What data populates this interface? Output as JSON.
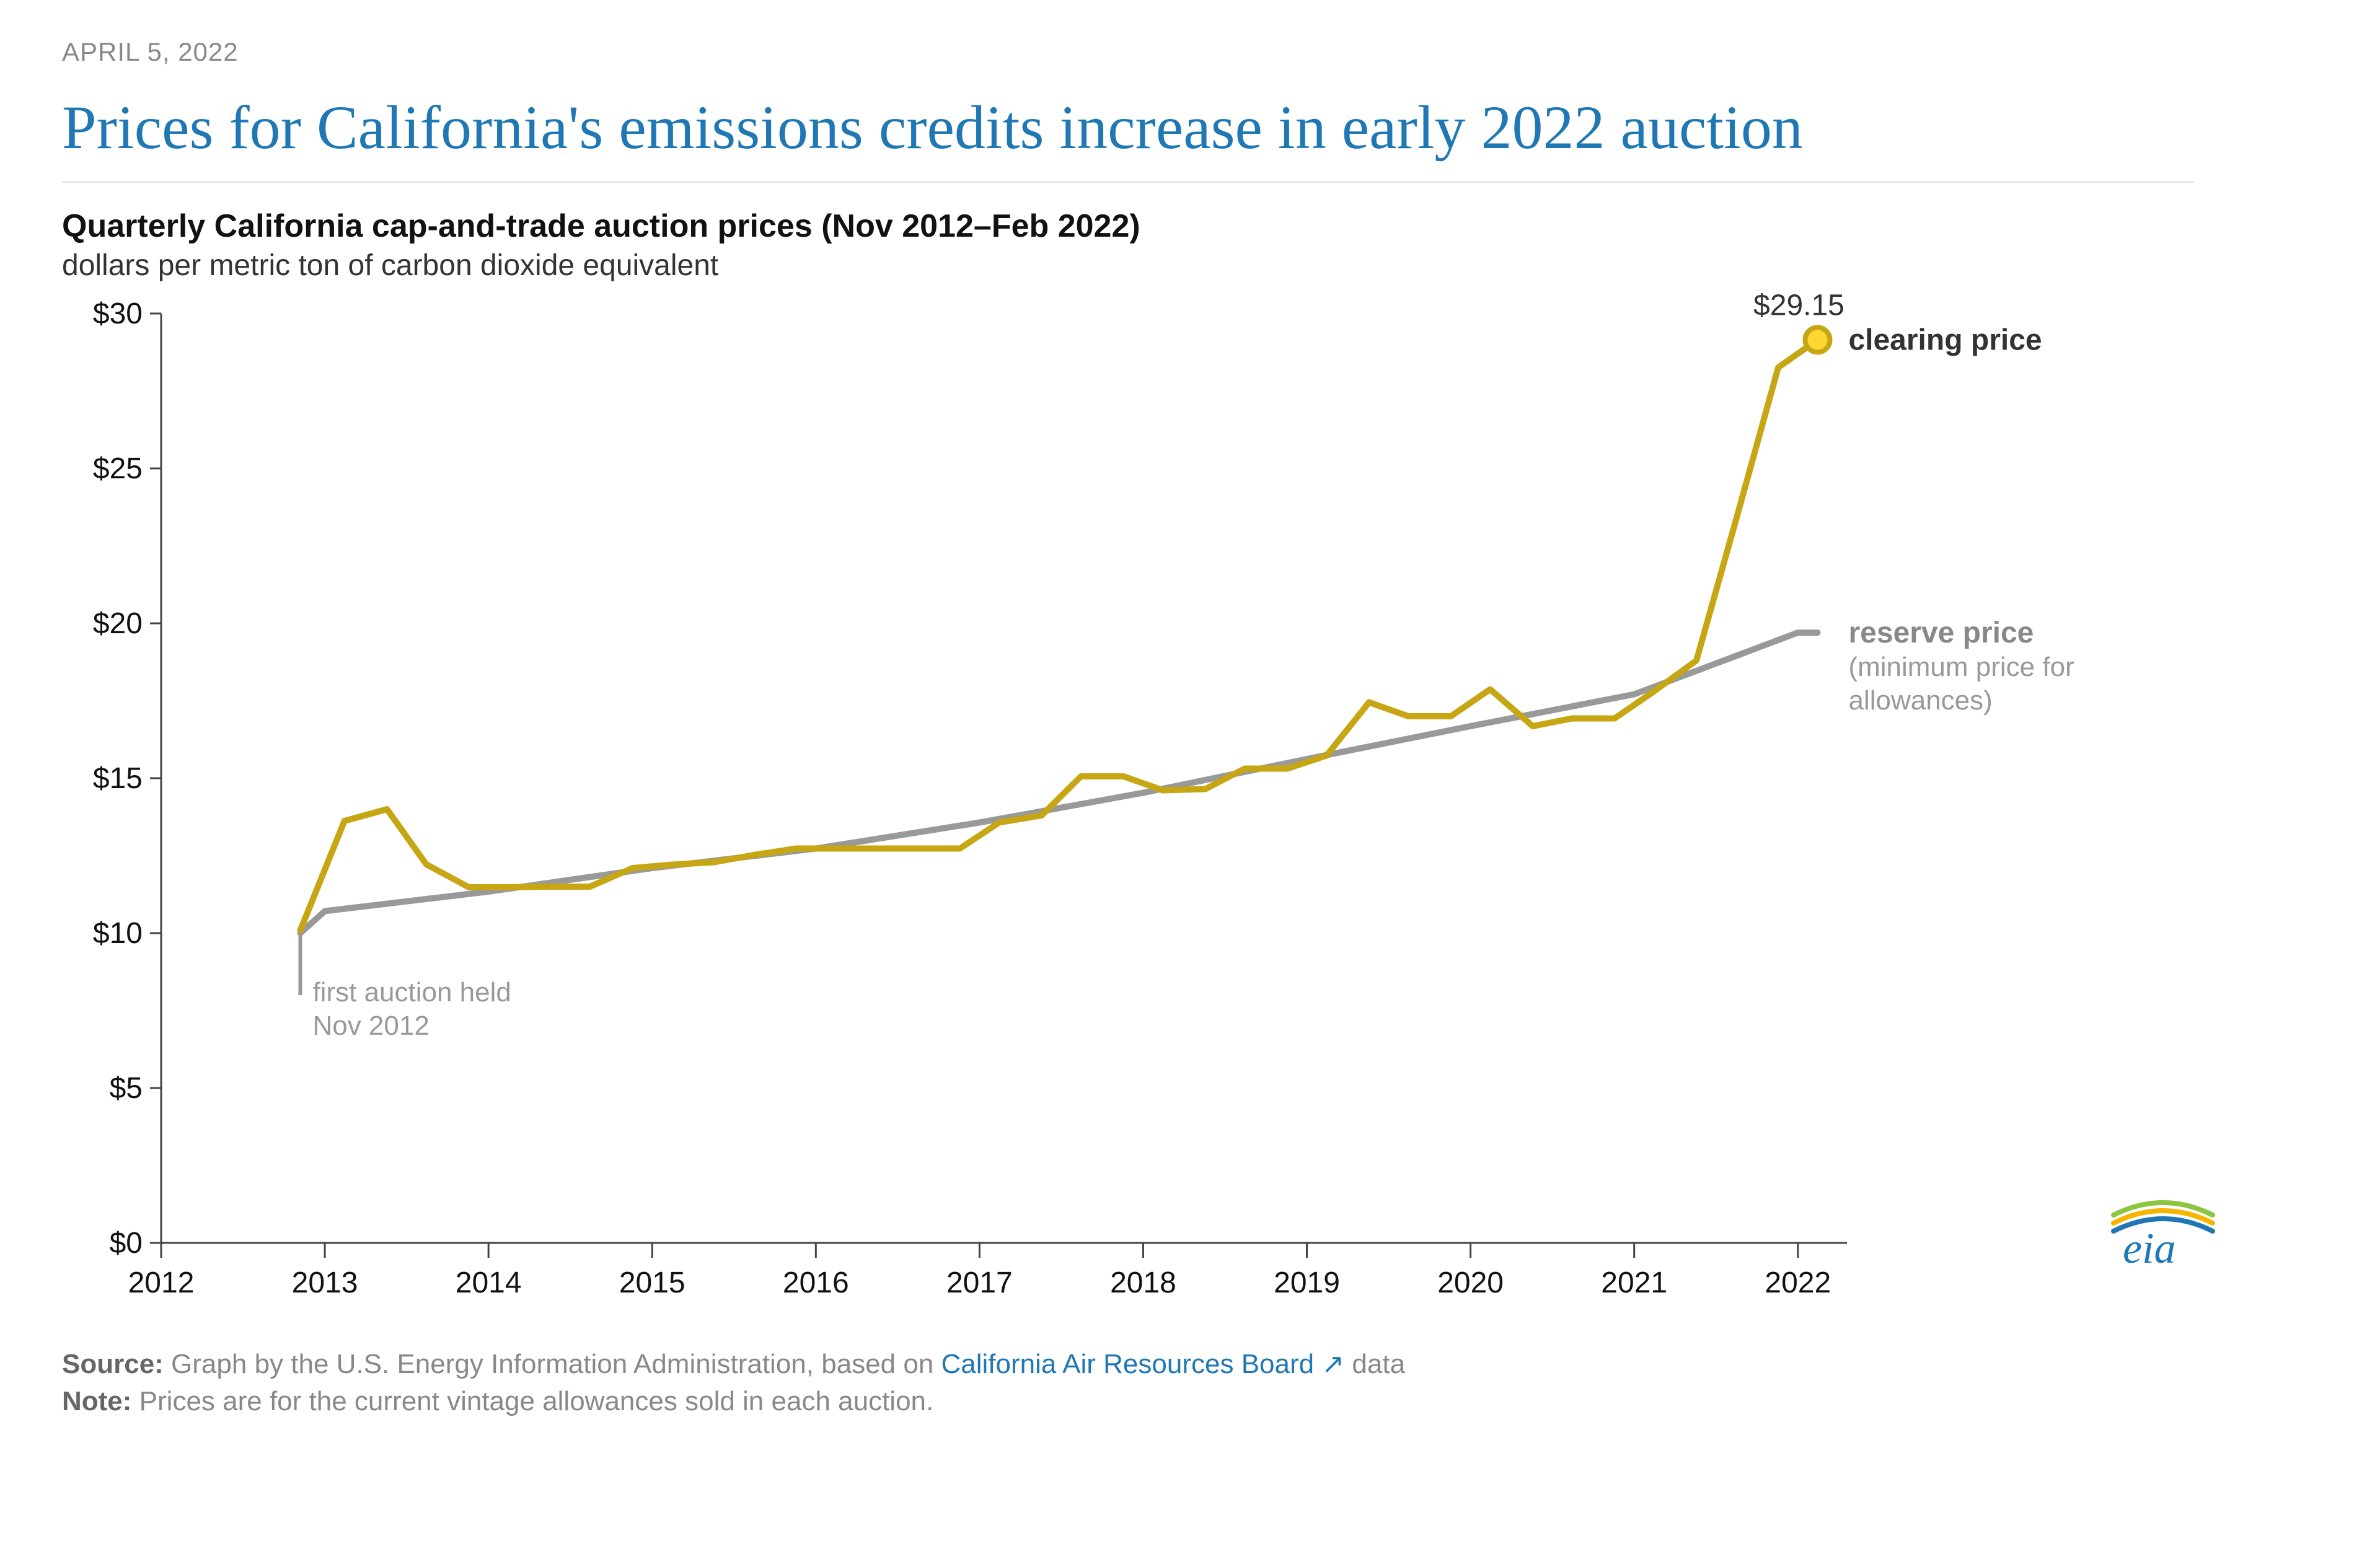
{
  "date_label": "APRIL 5, 2022",
  "headline": "Prices for California's emissions credits increase in early 2022 auction",
  "chart": {
    "type": "line",
    "title": "Quarterly California cap-and-trade auction prices (Nov 2012–Feb 2022)",
    "subtitle": "dollars per metric ton of carbon dioxide equivalent",
    "xlim": [
      2012,
      2022.3
    ],
    "ylim": [
      0,
      30
    ],
    "xtick_step": 1,
    "ytick_step": 5,
    "y_prefix": "$",
    "background_color": "#ffffff",
    "axis_color": "#444444",
    "axis_width": 3,
    "xticks": [
      2012,
      2013,
      2014,
      2015,
      2016,
      2017,
      2018,
      2019,
      2020,
      2021,
      2022
    ],
    "yticks": [
      0,
      5,
      10,
      15,
      20,
      25,
      30
    ],
    "tick_fontsize": 48,
    "title_fontsize": 52,
    "sub_fontsize": 48,
    "series": {
      "clearing": {
        "label": "clearing price",
        "color": "#c7a614",
        "width": 10,
        "x": [
          2012.85,
          2013.12,
          2013.38,
          2013.62,
          2013.88,
          2014.12,
          2014.38,
          2014.62,
          2014.88,
          2015.12,
          2015.38,
          2015.62,
          2015.88,
          2016.12,
          2016.38,
          2016.62,
          2016.88,
          2017.12,
          2017.38,
          2017.62,
          2017.88,
          2018.12,
          2018.38,
          2018.62,
          2018.88,
          2019.12,
          2019.38,
          2019.62,
          2019.88,
          2020.12,
          2020.38,
          2020.62,
          2020.88,
          2021.12,
          2021.38,
          2021.62,
          2021.88,
          2022.12
        ],
        "y": [
          10.09,
          13.62,
          14.0,
          12.22,
          11.48,
          11.48,
          11.5,
          11.5,
          12.1,
          12.21,
          12.29,
          12.52,
          12.73,
          12.73,
          12.73,
          12.73,
          12.73,
          13.57,
          13.8,
          15.06,
          15.06,
          14.61,
          14.65,
          15.31,
          15.31,
          15.73,
          17.45,
          17.0,
          17.0,
          17.87,
          16.68,
          16.93,
          16.93,
          17.8,
          18.8,
          23.3,
          28.26,
          29.15
        ],
        "end_marker": {
          "x": 2022.12,
          "y": 29.15,
          "r": 20,
          "stroke": "#c7a614",
          "fill": "#ffd633"
        },
        "end_label": "$29.15",
        "label_color": "#333333",
        "label_fontweight": 700,
        "label_fontsize": 48
      },
      "reserve": {
        "label": "reserve price",
        "sublabel": "(minimum price for allowances)",
        "color": "#999999",
        "width": 10,
        "x": [
          2012.85,
          2013.0,
          2014.0,
          2015.0,
          2016.0,
          2017.0,
          2018.0,
          2019.0,
          2020.0,
          2021.0,
          2022.0,
          2022.12
        ],
        "y": [
          10.0,
          10.71,
          11.34,
          12.1,
          12.73,
          13.57,
          14.53,
          15.62,
          16.68,
          17.71,
          19.7,
          19.7
        ],
        "label_color": "#888888",
        "label_fontweight": 700,
        "label_fontsize": 48,
        "sublabel_color": "#999999",
        "sublabel_fontsize": 44
      }
    },
    "annotation": {
      "text1": "first auction held",
      "text2": "Nov 2012",
      "x": 2012.85,
      "drop_to": 8,
      "color": "#999999",
      "fontsize": 44
    }
  },
  "source": {
    "prefix": "Source:",
    "text_before": " Graph by the U.S. Energy Information Administration, based on ",
    "link_text": "California Air Resources Board",
    "text_after": " data",
    "note_prefix": "Note:",
    "note_text": " Prices are for the current vintage allowances sold in each auction."
  },
  "logo": {
    "text": "eia",
    "text_color": "#1f78b4",
    "swoosh1": "#8cc63f",
    "swoosh2": "#f7b500",
    "swoosh3": "#1f78b4"
  }
}
